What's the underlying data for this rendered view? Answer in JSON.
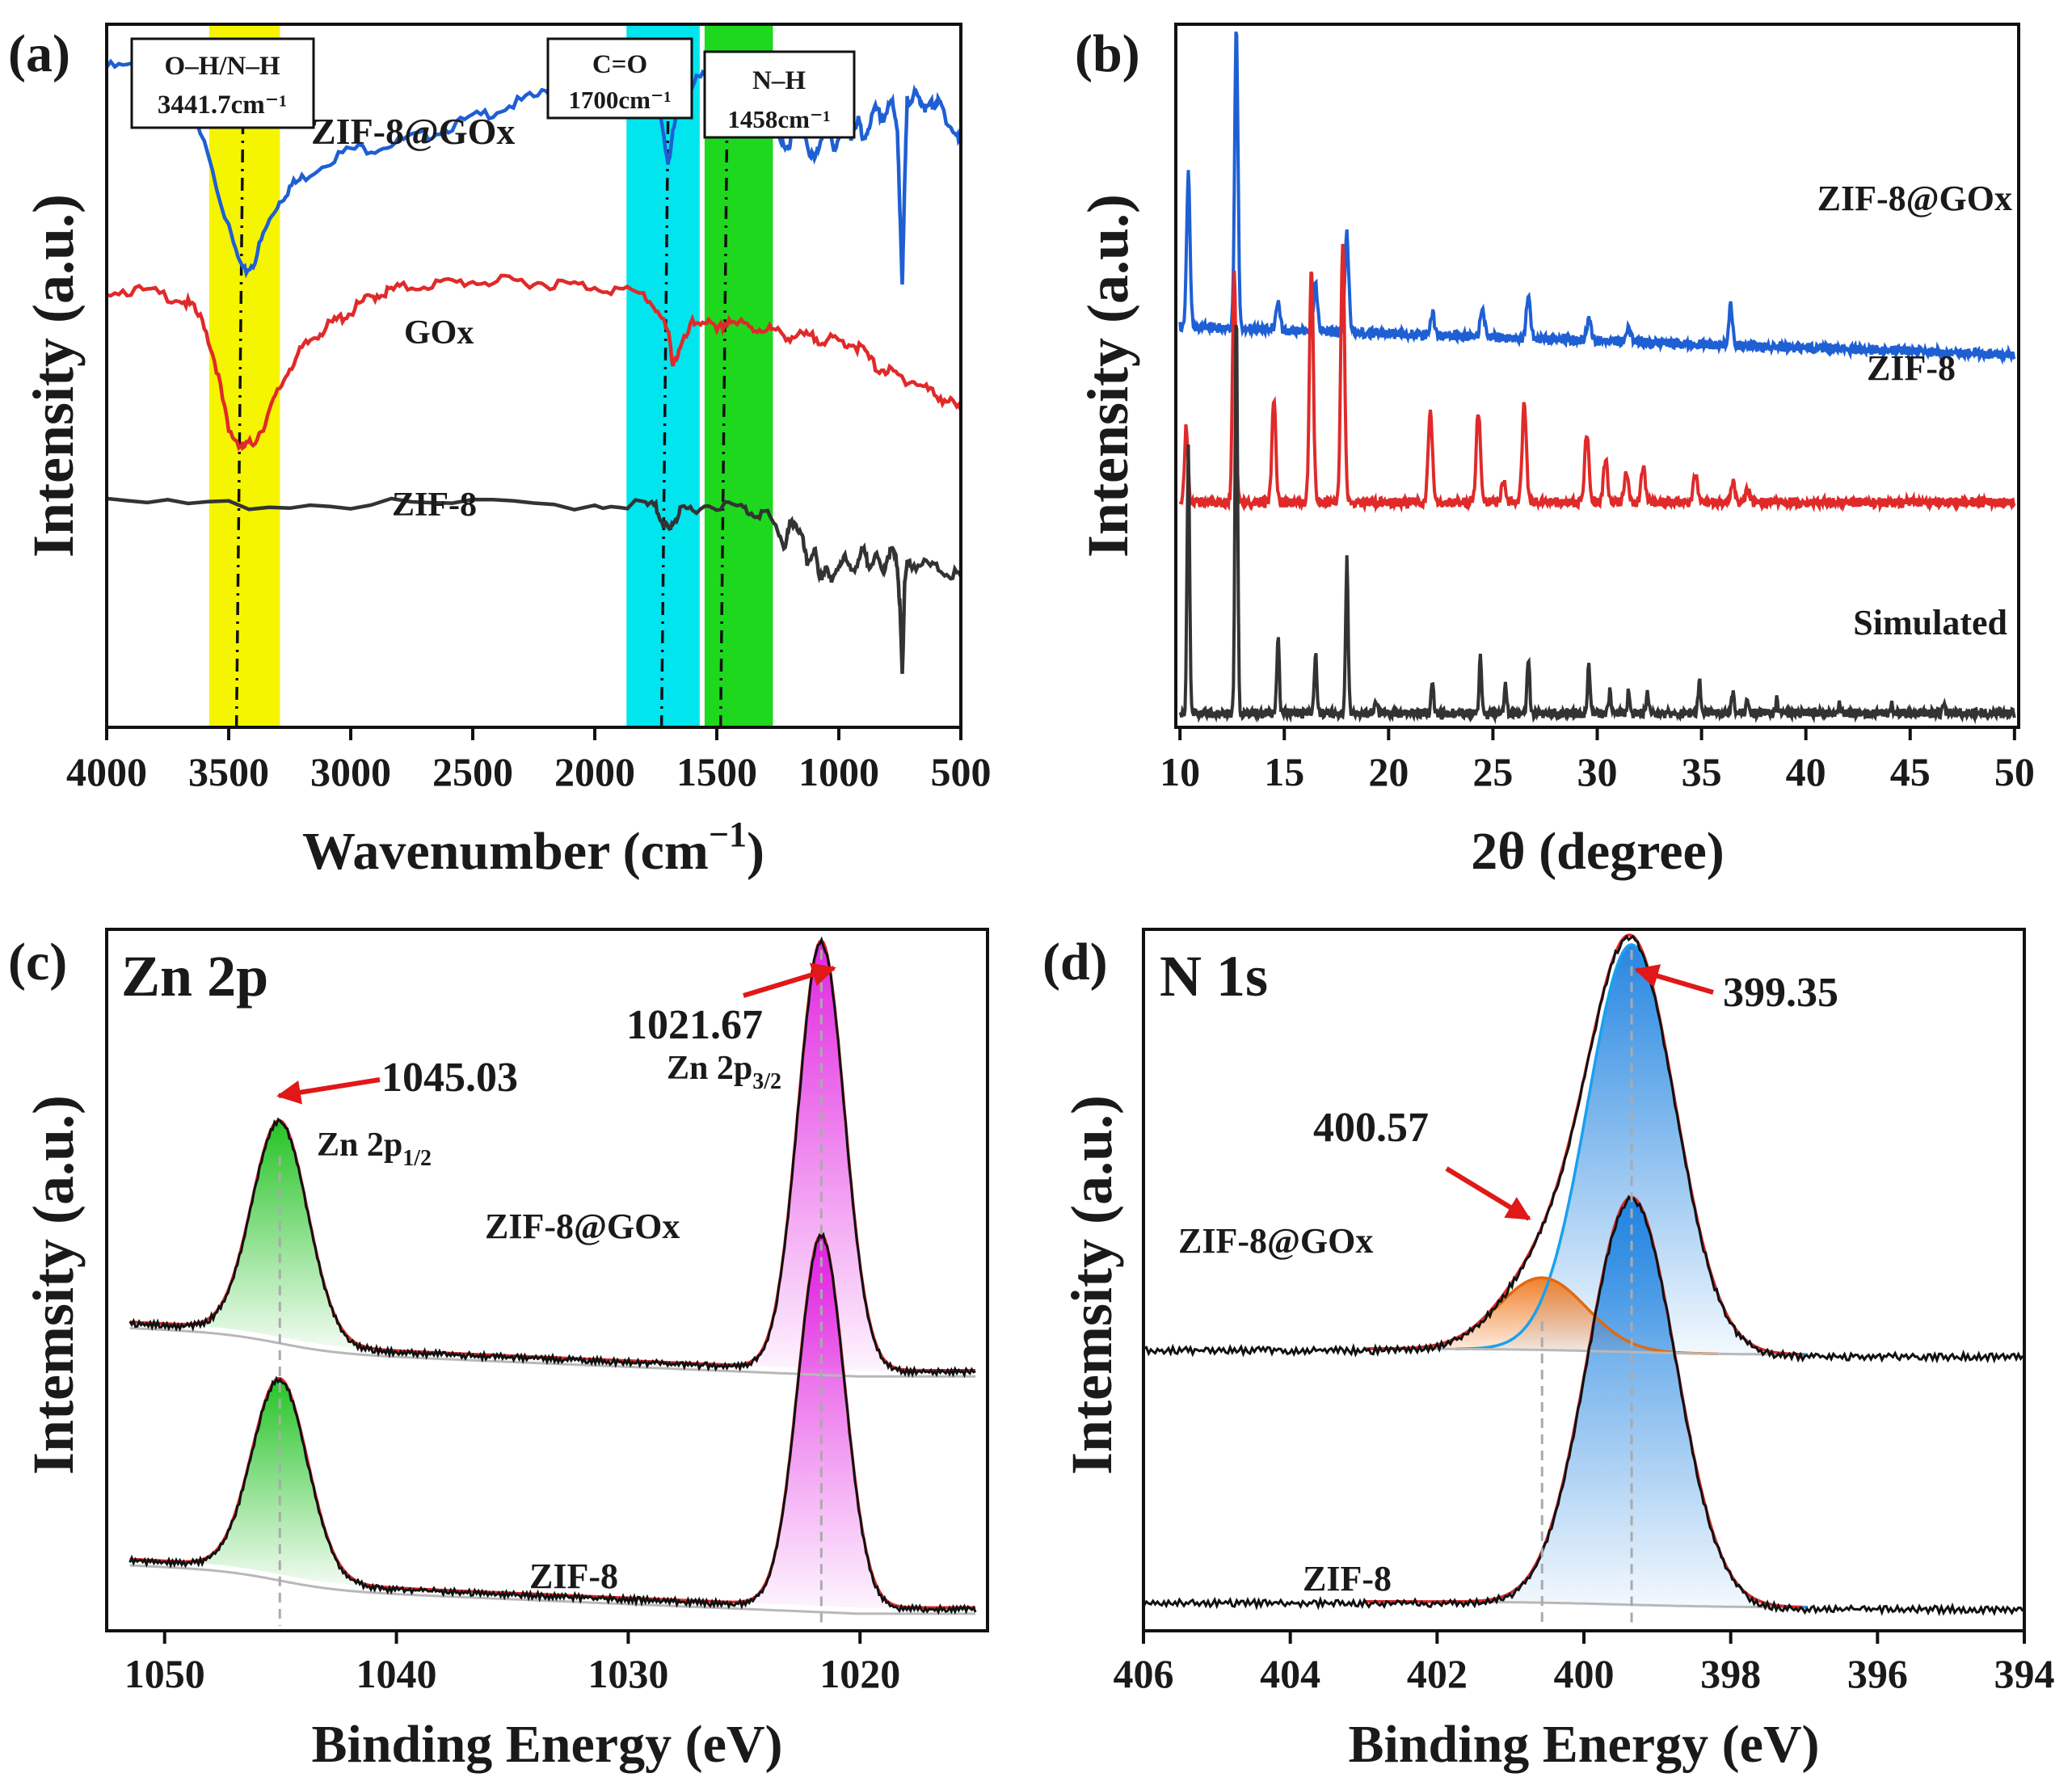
{
  "chart_data": [
    {
      "panel": "a",
      "panel_label": "(a)",
      "type": "line",
      "xlabel": "Wavenumber (cm",
      "xlabel_sup": "−1",
      "xlabel_end": ")",
      "ylabel": "Intensity (a.u.)",
      "xlim": [
        4000,
        500
      ],
      "xticks": [
        "4000",
        "3500",
        "3000",
        "2500",
        "2000",
        "1500",
        "1000",
        "500"
      ],
      "xtick_values": [
        4000,
        3500,
        3000,
        2500,
        2000,
        1500,
        1000,
        500
      ],
      "y_units": "arbitrary (offset traces)",
      "bands": [
        {
          "from": 3580,
          "to": 3290,
          "color": "#f5f500"
        },
        {
          "from": 1870,
          "to": 1570,
          "color": "#00e5ee"
        },
        {
          "from": 1550,
          "to": 1270,
          "color": "#1ed81e"
        }
      ],
      "markers": [
        {
          "x": 3441.7,
          "label_lines": [
            "O–H/N–H",
            "3441.7cm⁻¹"
          ]
        },
        {
          "x": 1700,
          "label_lines": [
            "C=O",
            "1700cm⁻¹"
          ]
        },
        {
          "x": 1458,
          "label_lines": [
            "N–H",
            "1458cm⁻¹"
          ]
        }
      ],
      "series": [
        {
          "name": "ZIF-8@GOx",
          "color": "#1f5fd4",
          "x": [
            4000,
            3900,
            3800,
            3700,
            3600,
            3500,
            3441.7,
            3400,
            3350,
            3300,
            3250,
            3200,
            3100,
            3000,
            2900,
            2800,
            2700,
            2600,
            2500,
            2400,
            2300,
            2200,
            2100,
            2000,
            1900,
            1850,
            1800,
            1750,
            1720,
            1700,
            1680,
            1650,
            1600,
            1550,
            1500,
            1450,
            1400,
            1350,
            1300,
            1250,
            1220,
            1200,
            1180,
            1150,
            1130,
            1100,
            1080,
            1050,
            1020,
            1000,
            980,
            950,
            920,
            900,
            880,
            850,
            820,
            800,
            780,
            760,
            750,
            740,
            730,
            720,
            700,
            680,
            660,
            640,
            620,
            600,
            580,
            550,
            520,
            500
          ],
          "y": [
            93.5,
            93.5,
            92.5,
            91.5,
            89.5,
            84.0,
            81.5,
            82.0,
            84.0,
            85.5,
            86.5,
            87.0,
            88.0,
            88.7,
            88.8,
            89.2,
            89.5,
            90.0,
            90.5,
            91.0,
            91.5,
            92.0,
            92.5,
            93.0,
            93.2,
            93.2,
            93.0,
            92.0,
            89.5,
            88.0,
            89.5,
            91.5,
            92.5,
            93.0,
            93.0,
            92.5,
            92.5,
            91.5,
            92.5,
            90.0,
            88.5,
            89.0,
            91.5,
            90.5,
            89.0,
            88.0,
            89.0,
            90.5,
            88.5,
            89.5,
            91.0,
            89.5,
            90.5,
            89.0,
            90.0,
            91.0,
            90.5,
            91.0,
            91.5,
            90.0,
            85.0,
            81.0,
            86.5,
            91.5,
            91.8,
            91.8,
            91.5,
            91.0,
            91.3,
            91.5,
            91.2,
            90.2,
            89.5,
            89.0
          ]
        },
        {
          "name": "GOx",
          "color": "#e02a2a",
          "x": [
            4000,
            3900,
            3800,
            3700,
            3650,
            3600,
            3550,
            3500,
            3450,
            3441.7,
            3400,
            3350,
            3300,
            3250,
            3200,
            3150,
            3100,
            3050,
            3000,
            2950,
            2900,
            2850,
            2800,
            2700,
            2600,
            2500,
            2400,
            2300,
            2200,
            2100,
            2000,
            1900,
            1800,
            1750,
            1700,
            1680,
            1650,
            1600,
            1550,
            1500,
            1450,
            1400,
            1350,
            1300,
            1250,
            1200,
            1150,
            1100,
            1050,
            1000,
            950,
            900,
            850,
            800,
            750,
            700,
            650,
            600,
            550,
            500
          ],
          "y": [
            80.5,
            80.5,
            80.3,
            80.0,
            79.5,
            78.5,
            76.0,
            72.2,
            71.5,
            71.3,
            71.6,
            72.8,
            74.5,
            76.0,
            77.0,
            77.8,
            78.3,
            78.8,
            79.2,
            79.8,
            80.2,
            80.4,
            80.6,
            80.8,
            80.9,
            81.0,
            81.0,
            81.0,
            80.9,
            80.8,
            80.7,
            80.5,
            80.2,
            79.5,
            78.0,
            76.3,
            77.0,
            78.5,
            78.8,
            78.0,
            78.8,
            78.5,
            78.2,
            78.3,
            78.0,
            77.8,
            77.8,
            77.7,
            77.6,
            77.5,
            77.4,
            77.0,
            76.0,
            75.8,
            75.4,
            75.2,
            74.8,
            74.4,
            74.0,
            73.5
          ]
        },
        {
          "name": "ZIF-8",
          "color": "#333333",
          "x": [
            4000,
            3500,
            3000,
            2500,
            2000,
            1800,
            1750,
            1720,
            1700,
            1680,
            1650,
            1600,
            1500,
            1400,
            1350,
            1300,
            1250,
            1220,
            1200,
            1180,
            1150,
            1130,
            1100,
            1080,
            1050,
            1030,
            1000,
            980,
            950,
            920,
            900,
            880,
            850,
            820,
            800,
            780,
            760,
            750,
            740,
            730,
            720,
            700,
            650,
            600,
            550,
            500
          ],
          "y": [
            68.0,
            68.0,
            68.0,
            68.0,
            68.0,
            68.0,
            67.8,
            67.0,
            66.5,
            67.0,
            67.5,
            67.8,
            68.0,
            67.8,
            67.5,
            67.5,
            66.5,
            65.5,
            66.8,
            67.0,
            66.0,
            64.5,
            65.5,
            63.5,
            64.5,
            63.3,
            64.5,
            65.0,
            64.0,
            64.8,
            65.3,
            64.5,
            65.0,
            64.0,
            65.0,
            65.3,
            64.5,
            62.0,
            58.0,
            63.5,
            64.5,
            64.5,
            64.5,
            64.3,
            64.0,
            63.8
          ]
        }
      ],
      "ylim": [
        55,
        96
      ]
    },
    {
      "panel": "b",
      "panel_label": "(b)",
      "type": "line",
      "xlabel": "2θ (degree)",
      "ylabel": "Intensity (a.u.)",
      "xlim": [
        9.8,
        50.2
      ],
      "xticks": [
        "10",
        "15",
        "20",
        "25",
        "30",
        "35",
        "40",
        "45",
        "50"
      ],
      "xtick_values": [
        10,
        15,
        20,
        25,
        30,
        35,
        40,
        45,
        50
      ],
      "series": [
        {
          "name": "ZIF-8@GOx",
          "color": "#1f5fd4",
          "offset": 57,
          "baseline_slope": -4,
          "peaks": [
            [
              10.4,
              22,
              0.08
            ],
            [
              12.7,
              43,
              0.08
            ],
            [
              14.7,
              4,
              0.09
            ],
            [
              16.5,
              7,
              0.09
            ],
            [
              18.0,
              14,
              0.09
            ],
            [
              22.1,
              3,
              0.1
            ],
            [
              24.5,
              4,
              0.1
            ],
            [
              26.7,
              6,
              0.1
            ],
            [
              29.6,
              3,
              0.1
            ],
            [
              31.5,
              2,
              0.1
            ],
            [
              36.4,
              6,
              0.08
            ]
          ]
        },
        {
          "name": "ZIF-8",
          "color": "#e02a2a",
          "offset": 32,
          "baseline_slope": 0,
          "peaks": [
            [
              10.3,
              11,
              0.08
            ],
            [
              12.6,
              33,
              0.08
            ],
            [
              14.5,
              15,
              0.09
            ],
            [
              16.3,
              34,
              0.09
            ],
            [
              17.8,
              37,
              0.09
            ],
            [
              22.0,
              13,
              0.1
            ],
            [
              24.3,
              13,
              0.1
            ],
            [
              25.5,
              3,
              0.1
            ],
            [
              26.5,
              14,
              0.1
            ],
            [
              29.5,
              10,
              0.1
            ],
            [
              30.4,
              6,
              0.1
            ],
            [
              31.4,
              4,
              0.1
            ],
            [
              32.2,
              5,
              0.1
            ],
            [
              34.7,
              4,
              0.1
            ],
            [
              36.5,
              3,
              0.1
            ],
            [
              37.2,
              2,
              0.1
            ]
          ]
        },
        {
          "name": "Simulated",
          "color": "#333333",
          "offset": 2,
          "baseline_slope": 0,
          "peaks": [
            [
              10.4,
              38,
              0.06
            ],
            [
              12.7,
              58,
              0.06
            ],
            [
              14.7,
              11,
              0.06
            ],
            [
              16.5,
              9,
              0.06
            ],
            [
              18.0,
              22,
              0.06
            ],
            [
              19.4,
              2,
              0.06
            ],
            [
              22.1,
              5,
              0.06
            ],
            [
              24.4,
              8,
              0.06
            ],
            [
              25.6,
              4,
              0.06
            ],
            [
              26.7,
              8,
              0.06
            ],
            [
              29.6,
              7,
              0.06
            ],
            [
              30.6,
              3,
              0.06
            ],
            [
              31.5,
              3,
              0.06
            ],
            [
              32.4,
              3,
              0.06
            ],
            [
              34.9,
              5,
              0.06
            ],
            [
              36.5,
              3,
              0.06
            ],
            [
              37.2,
              2,
              0.06
            ],
            [
              38.6,
              2,
              0.06
            ],
            [
              41.6,
              1.5,
              0.06
            ],
            [
              44.1,
              1.5,
              0.06
            ],
            [
              46.6,
              1.5,
              0.06
            ]
          ]
        }
      ],
      "ylim": [
        0,
        100
      ]
    },
    {
      "panel": "c",
      "panel_label": "(c)",
      "title": "Zn 2p",
      "type": "line",
      "xlabel": "Binding Energy (eV)",
      "ylabel": "Intemsity (a.u.)",
      "xlim": [
        1052.5,
        1014.5
      ],
      "xticks": [
        "1050",
        "1040",
        "1030",
        "1020"
      ],
      "xtick_values": [
        1050,
        1040,
        1030,
        1020
      ],
      "annotations": [
        {
          "text": "1045.03",
          "x": 1045.03
        },
        {
          "text": "1021.67",
          "x": 1021.67
        },
        {
          "text": "Zn 2p",
          "sub": "1/2"
        },
        {
          "text": "Zn 2p",
          "sub": "3/2"
        }
      ],
      "series": [
        {
          "name": "ZIF-8@GOx",
          "offset": 50,
          "peaks": [
            {
              "center": 1045.03,
              "height": 42,
              "width": 1.2,
              "fill": "#19c019"
            },
            {
              "center": 1021.67,
              "height": 83,
              "width": 1.0,
              "fill": "#e018e0"
            }
          ]
        },
        {
          "name": "ZIF-8",
          "offset": 4,
          "peaks": [
            {
              "center": 1045.03,
              "height": 38,
              "width": 1.2,
              "fill": "#19c019"
            },
            {
              "center": 1021.67,
              "height": 72,
              "width": 1.0,
              "fill": "#e018e0"
            }
          ]
        }
      ],
      "ylim": [
        0,
        136
      ]
    },
    {
      "panel": "d",
      "panel_label": "(d)",
      "title": "N 1s",
      "type": "line",
      "xlabel": "Binding Energy (eV)",
      "ylabel": "Intemsity (a.u.)",
      "xlim": [
        406,
        394
      ],
      "xticks": [
        "406",
        "404",
        "402",
        "400",
        "398",
        "396",
        "394"
      ],
      "xtick_values": [
        406,
        404,
        402,
        400,
        398,
        396,
        394
      ],
      "annotations": [
        {
          "text": "399.35",
          "x": 399.35
        },
        {
          "text": "400.57",
          "x": 400.57
        }
      ],
      "series": [
        {
          "name": "ZIF-8@GOx",
          "offset": 52,
          "components": [
            {
              "center": 399.35,
              "height": 79,
              "width": 0.6,
              "fill": "#1a80e0"
            },
            {
              "center": 400.57,
              "height": 14,
              "width": 0.6,
              "fill": "#f07a20"
            }
          ]
        },
        {
          "name": "ZIF-8",
          "offset": 3,
          "components": [
            {
              "center": 399.35,
              "height": 79,
              "width": 0.6,
              "fill": "#1a80e0"
            }
          ]
        }
      ],
      "ylim": [
        0,
        136
      ]
    }
  ]
}
